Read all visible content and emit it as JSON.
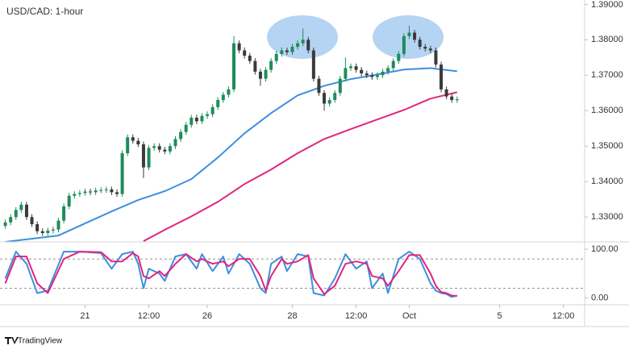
{
  "chart_data": [
    {
      "type": "candlestick",
      "title": "USD/CAD: 1-hour",
      "up_color": "#1e8c5a",
      "down_color": "#3a3a3a",
      "xlim": [
        -1,
        109
      ],
      "ylim": [
        1.323,
        1.3912
      ],
      "yticks": [
        {
          "value": 1.33,
          "label": "1.33000"
        },
        {
          "value": 1.34,
          "label": "1.34000"
        },
        {
          "value": 1.35,
          "label": "1.35000"
        },
        {
          "value": 1.36,
          "label": "1.36000"
        },
        {
          "value": 1.37,
          "label": "1.37000"
        },
        {
          "value": 1.38,
          "label": "1.38000"
        },
        {
          "value": 1.39,
          "label": "1.39000"
        }
      ],
      "x": [
        0,
        1,
        2,
        3,
        4,
        5,
        6,
        7,
        8,
        9,
        10,
        11,
        12,
        13,
        14,
        15,
        16,
        17,
        18,
        19,
        20,
        21,
        22,
        23,
        24,
        25,
        26,
        27,
        28,
        29,
        30,
        31,
        32,
        33,
        34,
        35,
        36,
        37,
        38,
        39,
        40,
        41,
        42,
        43,
        44,
        45,
        46,
        47,
        48,
        49,
        50,
        51,
        52,
        53,
        54,
        55,
        56,
        57,
        58,
        59,
        60,
        61,
        62,
        63,
        64,
        65,
        66,
        67,
        68,
        69,
        70,
        71,
        72,
        73,
        74,
        75,
        76,
        77,
        78,
        79,
        80,
        81,
        82,
        83,
        84,
        85
      ],
      "open": [
        1.3275,
        1.3285,
        1.33,
        1.332,
        1.3335,
        1.33,
        1.328,
        1.326,
        1.3255,
        1.3262,
        1.3265,
        1.329,
        1.333,
        1.336,
        1.3365,
        1.3368,
        1.3372,
        1.337,
        1.3375,
        1.3376,
        1.3378,
        1.337,
        1.3365,
        1.348,
        1.3525,
        1.3515,
        1.3505,
        1.344,
        1.3495,
        1.35,
        1.349,
        1.3485,
        1.35,
        1.352,
        1.354,
        1.356,
        1.358,
        1.357,
        1.3585,
        1.359,
        1.361,
        1.363,
        1.3645,
        1.366,
        1.379,
        1.377,
        1.3755,
        1.374,
        1.371,
        1.369,
        1.3715,
        1.374,
        1.376,
        1.377,
        1.3765,
        1.378,
        1.379,
        1.38,
        1.377,
        1.369,
        1.365,
        1.362,
        1.363,
        1.365,
        1.369,
        1.372,
        1.3725,
        1.3715,
        1.3705,
        1.37,
        1.3695,
        1.37,
        1.371,
        1.372,
        1.374,
        1.376,
        1.381,
        1.382,
        1.38,
        1.378,
        1.3775,
        1.377,
        1.373,
        1.366,
        1.364,
        1.363
      ],
      "high": [
        1.3293,
        1.3308,
        1.3328,
        1.3343,
        1.3343,
        1.3308,
        1.3288,
        1.3268,
        1.327,
        1.3273,
        1.3298,
        1.3338,
        1.3368,
        1.3373,
        1.3376,
        1.338,
        1.338,
        1.3383,
        1.3384,
        1.3386,
        1.3386,
        1.3378,
        1.3488,
        1.3533,
        1.3533,
        1.3523,
        1.3513,
        1.3503,
        1.3508,
        1.3508,
        1.3498,
        1.3508,
        1.3528,
        1.3548,
        1.3568,
        1.3588,
        1.3588,
        1.3593,
        1.3598,
        1.3618,
        1.3638,
        1.3653,
        1.3668,
        1.381,
        1.3798,
        1.3778,
        1.3763,
        1.3748,
        1.3718,
        1.3723,
        1.3748,
        1.3768,
        1.3778,
        1.3778,
        1.3788,
        1.3798,
        1.3832,
        1.3808,
        1.3778,
        1.3698,
        1.3658,
        1.3638,
        1.3658,
        1.3698,
        1.375,
        1.3733,
        1.3733,
        1.3723,
        1.3713,
        1.3708,
        1.3708,
        1.3718,
        1.3728,
        1.3748,
        1.3768,
        1.3818,
        1.384,
        1.3828,
        1.3808,
        1.3788,
        1.3783,
        1.3778,
        1.3738,
        1.3668,
        1.3648,
        1.364
      ],
      "low": [
        1.3267,
        1.3277,
        1.3292,
        1.3312,
        1.3292,
        1.3272,
        1.3252,
        1.3247,
        1.3247,
        1.3254,
        1.3257,
        1.3282,
        1.3322,
        1.3352,
        1.3357,
        1.336,
        1.3362,
        1.3362,
        1.3367,
        1.3368,
        1.3362,
        1.3357,
        1.3357,
        1.3472,
        1.3507,
        1.3497,
        1.341,
        1.3432,
        1.3487,
        1.3482,
        1.3477,
        1.3477,
        1.3492,
        1.3512,
        1.3532,
        1.3552,
        1.3562,
        1.3562,
        1.3577,
        1.3582,
        1.3602,
        1.3622,
        1.3637,
        1.3652,
        1.3762,
        1.3747,
        1.3732,
        1.3702,
        1.367,
        1.3682,
        1.3707,
        1.3732,
        1.3752,
        1.3757,
        1.3757,
        1.3772,
        1.3782,
        1.3762,
        1.3682,
        1.3642,
        1.36,
        1.3612,
        1.3622,
        1.3642,
        1.3682,
        1.3712,
        1.3707,
        1.3697,
        1.3692,
        1.3687,
        1.3687,
        1.3692,
        1.3702,
        1.3712,
        1.3732,
        1.3752,
        1.3802,
        1.3792,
        1.3772,
        1.3767,
        1.3762,
        1.3722,
        1.3652,
        1.3632,
        1.3622,
        1.3622
      ],
      "close": [
        1.3285,
        1.33,
        1.332,
        1.3335,
        1.33,
        1.328,
        1.326,
        1.3255,
        1.3262,
        1.3265,
        1.329,
        1.333,
        1.336,
        1.3365,
        1.3368,
        1.3372,
        1.337,
        1.3375,
        1.3376,
        1.3378,
        1.337,
        1.3365,
        1.348,
        1.3525,
        1.3515,
        1.3505,
        1.344,
        1.3495,
        1.35,
        1.349,
        1.3485,
        1.35,
        1.352,
        1.354,
        1.356,
        1.358,
        1.357,
        1.3585,
        1.359,
        1.361,
        1.363,
        1.3645,
        1.366,
        1.379,
        1.377,
        1.3755,
        1.374,
        1.371,
        1.369,
        1.3715,
        1.374,
        1.376,
        1.377,
        1.3765,
        1.378,
        1.379,
        1.38,
        1.377,
        1.369,
        1.365,
        1.362,
        1.363,
        1.365,
        1.369,
        1.372,
        1.3725,
        1.3715,
        1.3705,
        1.37,
        1.3695,
        1.37,
        1.371,
        1.372,
        1.374,
        1.376,
        1.381,
        1.382,
        1.38,
        1.378,
        1.3775,
        1.377,
        1.373,
        1.366,
        1.364,
        1.363,
        1.3632
      ],
      "series": [
        {
          "color": "#3d8fe0",
          "x": [
            0,
            10,
            20,
            25,
            30,
            35,
            40,
            45,
            50,
            55,
            60,
            65,
            70,
            75,
            80,
            85
          ],
          "values": [
            1.323,
            1.3248,
            1.3316,
            1.3348,
            1.3373,
            1.3407,
            1.3468,
            1.3536,
            1.3593,
            1.3643,
            1.367,
            1.3689,
            1.3702,
            1.3716,
            1.372,
            1.3711
          ]
        },
        {
          "color": "#e0267d",
          "x": [
            26,
            30,
            35,
            40,
            45,
            50,
            55,
            60,
            65,
            70,
            75,
            80,
            85
          ],
          "values": [
            1.3232,
            1.3264,
            1.3302,
            1.3343,
            1.3393,
            1.3434,
            1.348,
            1.352,
            1.3548,
            1.3575,
            1.3602,
            1.3634,
            1.3652
          ]
        }
      ]
    },
    {
      "type": "line",
      "xlim": [
        -1,
        109
      ],
      "ylim": [
        -14,
        115
      ],
      "yticks": [
        {
          "value": 100,
          "label": "100.00"
        },
        {
          "value": 0,
          "label": "0.00"
        }
      ],
      "levels": [
        80,
        20
      ],
      "xticks": [
        {
          "value": 15,
          "label": "21"
        },
        {
          "value": 27,
          "label": "12:00"
        },
        {
          "value": 38,
          "label": "26"
        },
        {
          "value": 54,
          "label": "28"
        },
        {
          "value": 66,
          "label": "12:00"
        },
        {
          "value": 76,
          "label": "Oct"
        },
        {
          "value": 93,
          "label": "5"
        },
        {
          "value": 105,
          "label": "12:00"
        }
      ],
      "series": [
        {
          "color": "#3d8fe0",
          "x": [
            0,
            2,
            4,
            6,
            8,
            11,
            14,
            18,
            20,
            22,
            24,
            25,
            26,
            27,
            29,
            30,
            32,
            34,
            36,
            37,
            39,
            41,
            42,
            44,
            46,
            48,
            49,
            50,
            52,
            53,
            55,
            57,
            58,
            60,
            62,
            64,
            66,
            68,
            69,
            71,
            72,
            74,
            76,
            78,
            80,
            81,
            82,
            83,
            84,
            85
          ],
          "values": [
            40,
            95,
            70,
            10,
            15,
            95,
            95,
            92,
            60,
            90,
            95,
            70,
            20,
            60,
            50,
            35,
            85,
            90,
            60,
            90,
            55,
            85,
            50,
            90,
            70,
            20,
            10,
            70,
            85,
            55,
            90,
            85,
            10,
            5,
            40,
            90,
            60,
            75,
            20,
            50,
            10,
            80,
            95,
            80,
            30,
            15,
            10,
            8,
            2,
            5
          ]
        },
        {
          "color": "#e0267d",
          "x": [
            0,
            2,
            4,
            6,
            8,
            11,
            14,
            18,
            20,
            22,
            24,
            25,
            26,
            27,
            29,
            30,
            32,
            34,
            36,
            37,
            39,
            41,
            42,
            44,
            46,
            48,
            49,
            50,
            52,
            53,
            55,
            57,
            58,
            60,
            62,
            64,
            66,
            68,
            69,
            71,
            72,
            74,
            76,
            78,
            80,
            81,
            82,
            83,
            84,
            85
          ],
          "values": [
            30,
            85,
            85,
            30,
            10,
            80,
            95,
            94,
            75,
            75,
            92,
            85,
            45,
            40,
            55,
            45,
            70,
            90,
            75,
            80,
            70,
            75,
            65,
            80,
            80,
            45,
            15,
            45,
            80,
            70,
            75,
            88,
            40,
            8,
            25,
            70,
            75,
            70,
            45,
            40,
            25,
            55,
            88,
            88,
            50,
            25,
            12,
            10,
            5,
            4
          ]
        }
      ]
    }
  ],
  "footer": {
    "brand": "TradingView"
  }
}
